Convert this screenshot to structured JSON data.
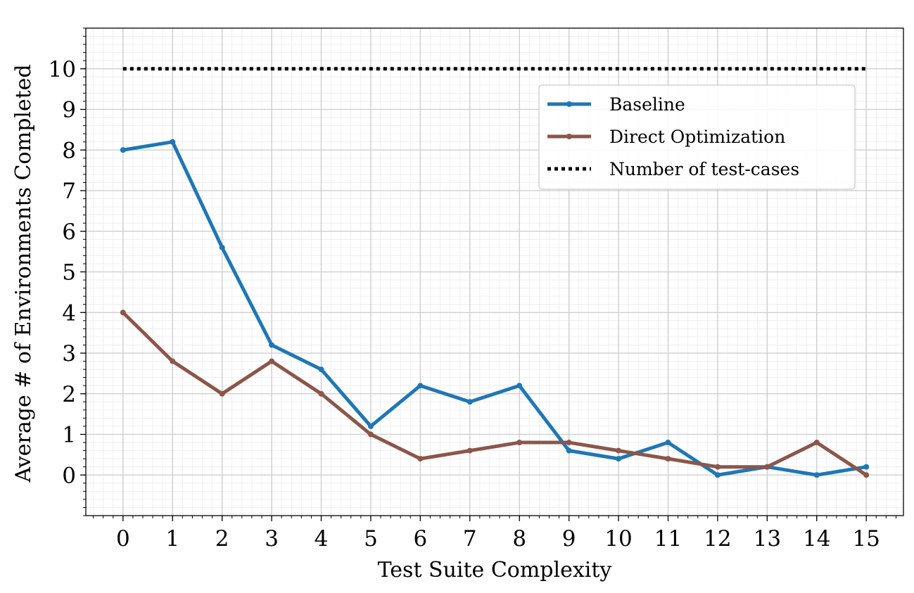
{
  "chart_data": {
    "type": "line",
    "title": "",
    "xlabel": "Test Suite Complexity",
    "ylabel": "Average # of Environments Completed",
    "x": [
      0,
      1,
      2,
      3,
      4,
      5,
      6,
      7,
      8,
      9,
      10,
      11,
      12,
      13,
      14,
      15
    ],
    "xticks": [
      0,
      1,
      2,
      3,
      4,
      5,
      6,
      7,
      8,
      9,
      10,
      11,
      12,
      13,
      14,
      15
    ],
    "yticks": [
      0,
      1,
      2,
      3,
      4,
      5,
      6,
      7,
      8,
      9,
      10
    ],
    "xlim": [
      -0.75,
      15.75
    ],
    "ylim": [
      -1,
      11
    ],
    "grid": true,
    "minor_grid": true,
    "legend_position": "upper-right",
    "series": [
      {
        "name": "Baseline",
        "style": "line-with-markers",
        "color": "#1f77b4",
        "values": [
          8.0,
          8.2,
          5.6,
          3.2,
          2.6,
          1.2,
          2.2,
          1.8,
          2.2,
          0.6,
          0.4,
          0.8,
          0.0,
          0.2,
          0.0,
          0.2
        ]
      },
      {
        "name": "Direct Optimization",
        "style": "line-with-markers",
        "color": "#8c564b",
        "values": [
          4.0,
          2.8,
          2.0,
          2.8,
          2.0,
          1.0,
          0.4,
          0.6,
          0.8,
          0.8,
          0.6,
          0.4,
          0.2,
          0.2,
          0.8,
          0.0
        ]
      },
      {
        "name": "Number of test-cases",
        "style": "dotted",
        "color": "#000000",
        "values": [
          10,
          10,
          10,
          10,
          10,
          10,
          10,
          10,
          10,
          10,
          10,
          10,
          10,
          10,
          10,
          10
        ]
      }
    ]
  }
}
